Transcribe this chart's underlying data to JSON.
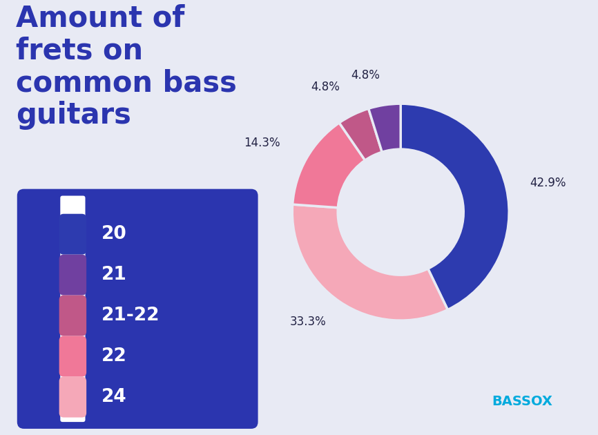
{
  "title": "Amount of\nfrets on\ncommon bass\nguitars",
  "background_color": "#E8EAF4",
  "legend_bg_color": "#2B35AF",
  "legend_text_color": "#FFFFFF",
  "legend_labels": [
    "20",
    "21",
    "21-22",
    "22",
    "24"
  ],
  "legend_colors": [
    "#2D3BAF",
    "#7040A0",
    "#C05888",
    "#F07898",
    "#F5A8B8"
  ],
  "slice_labels": [
    "42.9%",
    "33.3%",
    "14.3%",
    "4.8%",
    "4.8%"
  ],
  "slice_values": [
    42.9,
    33.3,
    14.3,
    4.8,
    4.8
  ],
  "slice_colors": [
    "#2D3BAF",
    "#F5A8B8",
    "#F07898",
    "#C05888",
    "#7040A0"
  ],
  "title_color": "#2B35AF",
  "label_color": "#222244",
  "label_fontsize": 12,
  "title_fontsize": 30
}
